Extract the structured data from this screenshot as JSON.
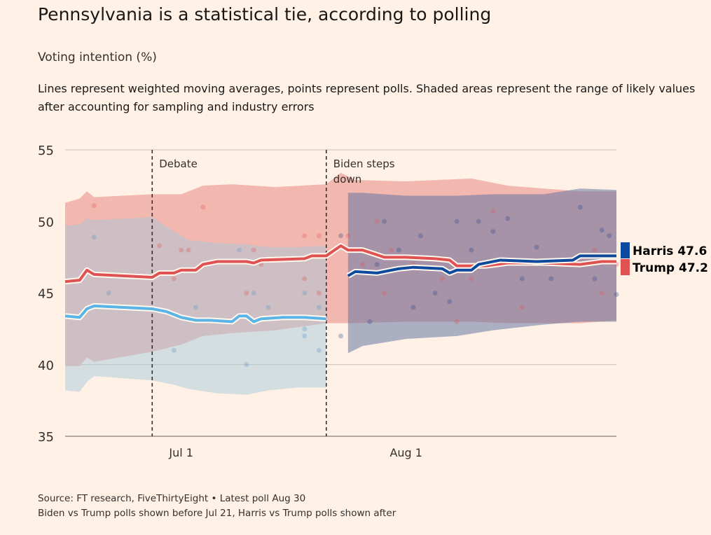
{
  "title": "Pennsylvania is a statistical tie, according to polling",
  "subtitle": "Voting intention (%)",
  "description": "Lines represent weighted moving averages, points represent polls. Shaded areas represent the range of likely values after accounting for sampling and industry errors",
  "footer": {
    "source": "Source: FT research, FiveThirtyEight • Latest poll Aug 30",
    "note": "Biden vs Trump polls shown before Jul 21, Harris vs Trump polls shown after"
  },
  "chart_data": {
    "type": "line",
    "ylim": [
      35,
      55
    ],
    "xlim": [
      "Jun 15",
      "Aug 30"
    ],
    "yticks": [
      35,
      40,
      45,
      50,
      55
    ],
    "xticks": [
      {
        "date": "Jul 1",
        "label": "Jul 1"
      },
      {
        "date": "Aug 1",
        "label": "Aug 1"
      }
    ],
    "grid": true,
    "annotations": [
      {
        "date": "Jun 27",
        "label": "Debate"
      },
      {
        "date": "Jul 21",
        "label": "Biden steps down"
      }
    ],
    "colors": {
      "trump": "#e05252",
      "biden": "#5ab4e5",
      "harris": "#0d4a9e",
      "background": "#fff1e5"
    },
    "legend": [
      {
        "name": "Harris",
        "value": "47.6",
        "color": "#0d4a9e"
      },
      {
        "name": "Trump",
        "value": "47.2",
        "color": "#e05252"
      }
    ],
    "series": [
      {
        "key": "trump",
        "color": "#e05252",
        "points": [
          [
            "Jun 15",
            45.8
          ],
          [
            "Jun 17",
            45.9
          ],
          [
            "Jun 18",
            46.6
          ],
          [
            "Jun 19",
            46.3
          ],
          [
            "Jun 27",
            46.1
          ],
          [
            "Jun 28",
            46.4
          ],
          [
            "Jun 30",
            46.4
          ],
          [
            "Jul 1",
            46.6
          ],
          [
            "Jul 3",
            46.6
          ],
          [
            "Jul 4",
            47.0
          ],
          [
            "Jul 6",
            47.2
          ],
          [
            "Jul 10",
            47.2
          ],
          [
            "Jul 11",
            47.1
          ],
          [
            "Jul 12",
            47.3
          ],
          [
            "Jul 18",
            47.4
          ],
          [
            "Jul 19",
            47.6
          ],
          [
            "Jul 21",
            47.6
          ],
          [
            "Jul 23",
            48.3
          ],
          [
            "Jul 24",
            48.0
          ],
          [
            "Jul 26",
            48.0
          ],
          [
            "Jul 29",
            47.5
          ],
          [
            "Aug 1",
            47.5
          ],
          [
            "Aug 5",
            47.4
          ],
          [
            "Aug 7",
            47.3
          ],
          [
            "Aug 8",
            46.9
          ],
          [
            "Aug 12",
            46.9
          ],
          [
            "Aug 15",
            47.1
          ],
          [
            "Aug 20",
            47.1
          ],
          [
            "Aug 25",
            47.0
          ],
          [
            "Aug 28",
            47.2
          ],
          [
            "Aug 30",
            47.2
          ]
        ],
        "band": [
          [
            "Jun 15",
            39.9,
            51.3
          ],
          [
            "Jun 17",
            39.9,
            51.6
          ],
          [
            "Jun 18",
            40.5,
            52.1
          ],
          [
            "Jun 19",
            40.2,
            51.7
          ],
          [
            "Jun 27",
            40.9,
            51.9
          ],
          [
            "Jul 1",
            41.4,
            51.9
          ],
          [
            "Jul 4",
            42.0,
            52.5
          ],
          [
            "Jul 8",
            42.2,
            52.6
          ],
          [
            "Jul 14",
            42.4,
            52.4
          ],
          [
            "Jul 21",
            42.9,
            52.6
          ],
          [
            "Jul 23",
            42.9,
            53.4
          ],
          [
            "Jul 25",
            42.9,
            52.9
          ],
          [
            "Aug 1",
            43.0,
            52.8
          ],
          [
            "Aug 10",
            43.0,
            53.0
          ],
          [
            "Aug 15",
            42.9,
            52.5
          ],
          [
            "Aug 20",
            42.9,
            52.3
          ],
          [
            "Aug 25",
            42.9,
            52.1
          ],
          [
            "Aug 30",
            43.1,
            52.1
          ]
        ]
      },
      {
        "key": "biden",
        "color": "#5ab4e5",
        "points": [
          [
            "Jun 15",
            43.4
          ],
          [
            "Jun 17",
            43.3
          ],
          [
            "Jun 18",
            43.9
          ],
          [
            "Jun 19",
            44.1
          ],
          [
            "Jun 27",
            43.9
          ],
          [
            "Jun 29",
            43.7
          ],
          [
            "Jul 1",
            43.3
          ],
          [
            "Jul 3",
            43.1
          ],
          [
            "Jul 5",
            43.1
          ],
          [
            "Jul 8",
            43.0
          ],
          [
            "Jul 9",
            43.4
          ],
          [
            "Jul 10",
            43.4
          ],
          [
            "Jul 11",
            43.0
          ],
          [
            "Jul 12",
            43.2
          ],
          [
            "Jul 15",
            43.3
          ],
          [
            "Jul 18",
            43.3
          ],
          [
            "Jul 21",
            43.2
          ]
        ],
        "band": [
          [
            "Jun 15",
            38.2,
            49.7
          ],
          [
            "Jun 17",
            38.1,
            49.8
          ],
          [
            "Jun 18",
            38.8,
            50.2
          ],
          [
            "Jun 19",
            39.2,
            50.1
          ],
          [
            "Jun 27",
            38.9,
            50.3
          ],
          [
            "Jun 30",
            38.6,
            49.3
          ],
          [
            "Jul 2",
            38.3,
            48.7
          ],
          [
            "Jul 6",
            38.0,
            48.5
          ],
          [
            "Jul 10",
            37.9,
            48.4
          ],
          [
            "Jul 13",
            38.2,
            48.2
          ],
          [
            "Jul 17",
            38.4,
            48.2
          ],
          [
            "Jul 21",
            38.4,
            48.3
          ]
        ]
      },
      {
        "key": "harris",
        "color": "#0d4a9e",
        "points": [
          [
            "Jul 24",
            46.2
          ],
          [
            "Jul 25",
            46.5
          ],
          [
            "Jul 28",
            46.4
          ],
          [
            "Jul 29",
            46.5
          ],
          [
            "Jul 31",
            46.7
          ],
          [
            "Aug 2",
            46.8
          ],
          [
            "Aug 6",
            46.7
          ],
          [
            "Aug 7",
            46.4
          ],
          [
            "Aug 8",
            46.6
          ],
          [
            "Aug 10",
            46.6
          ],
          [
            "Aug 11",
            47.0
          ],
          [
            "Aug 14",
            47.3
          ],
          [
            "Aug 19",
            47.2
          ],
          [
            "Aug 24",
            47.3
          ],
          [
            "Aug 25",
            47.6
          ],
          [
            "Aug 28",
            47.6
          ],
          [
            "Aug 30",
            47.6
          ]
        ],
        "band": [
          [
            "Jul 24",
            40.8,
            52.0
          ],
          [
            "Jul 26",
            41.3,
            52.0
          ],
          [
            "Aug 1",
            41.8,
            51.8
          ],
          [
            "Aug 8",
            42.0,
            51.8
          ],
          [
            "Aug 13",
            42.4,
            51.9
          ],
          [
            "Aug 20",
            42.8,
            51.9
          ],
          [
            "Aug 25",
            43.0,
            52.3
          ],
          [
            "Aug 30",
            43.0,
            52.2
          ]
        ]
      }
    ],
    "polls": [
      {
        "key": "trump",
        "date": "Jun 19",
        "value": 51.1
      },
      {
        "key": "trump",
        "date": "Jun 28",
        "value": 48.3
      },
      {
        "key": "trump",
        "date": "Jul 1",
        "value": 48.0
      },
      {
        "key": "trump",
        "date": "Jul 2",
        "value": 48.0
      },
      {
        "key": "trump",
        "date": "Jun 30",
        "value": 46.0
      },
      {
        "key": "trump",
        "date": "Jul 4",
        "value": 51.0
      },
      {
        "key": "trump",
        "date": "Jul 11",
        "value": 48.0
      },
      {
        "key": "trump",
        "date": "Jul 10",
        "value": 45.0
      },
      {
        "key": "trump",
        "date": "Jul 12",
        "value": 47.0
      },
      {
        "key": "trump",
        "date": "Jul 18",
        "value": 49.0
      },
      {
        "key": "trump",
        "date": "Jul 20",
        "value": 49.0
      },
      {
        "key": "trump",
        "date": "Jul 18",
        "value": 46.0
      },
      {
        "key": "trump",
        "date": "Jul 20",
        "value": 45.0
      },
      {
        "key": "biden",
        "date": "Jun 19",
        "value": 48.9
      },
      {
        "key": "biden",
        "date": "Jun 21",
        "value": 45.0
      },
      {
        "key": "biden",
        "date": "Jul 3",
        "value": 44.0
      },
      {
        "key": "biden",
        "date": "Jun 30",
        "value": 41.0
      },
      {
        "key": "biden",
        "date": "Jul 9",
        "value": 48.0
      },
      {
        "key": "biden",
        "date": "Jul 10",
        "value": 40.0
      },
      {
        "key": "biden",
        "date": "Jul 11",
        "value": 45.0
      },
      {
        "key": "biden",
        "date": "Jul 13",
        "value": 44.0
      },
      {
        "key": "biden",
        "date": "Jul 18",
        "value": 45.0
      },
      {
        "key": "biden",
        "date": "Jul 18",
        "value": 42.5
      },
      {
        "key": "biden",
        "date": "Jul 18",
        "value": 42.0
      },
      {
        "key": "biden",
        "date": "Jul 20",
        "value": 41.0
      },
      {
        "key": "biden",
        "date": "Jul 20",
        "value": 44.0
      },
      {
        "key": "trump",
        "date": "Jul 24",
        "value": 49.0
      },
      {
        "key": "trump",
        "date": "Jul 26",
        "value": 47.0
      },
      {
        "key": "trump",
        "date": "Jul 28",
        "value": 50.0
      },
      {
        "key": "trump",
        "date": "Jul 29",
        "value": 45.0
      },
      {
        "key": "trump",
        "date": "Jul 30",
        "value": 48.0
      },
      {
        "key": "trump",
        "date": "Aug 2",
        "value": 47.0
      },
      {
        "key": "trump",
        "date": "Aug 6",
        "value": 46.0
      },
      {
        "key": "trump",
        "date": "Aug 8",
        "value": 43.0
      },
      {
        "key": "trump",
        "date": "Aug 10",
        "value": 46.0
      },
      {
        "key": "trump",
        "date": "Aug 13",
        "value": 50.7
      },
      {
        "key": "trump",
        "date": "Aug 17",
        "value": 44.0
      },
      {
        "key": "trump",
        "date": "Aug 24",
        "value": 47.0
      },
      {
        "key": "trump",
        "date": "Aug 27",
        "value": 48.0
      },
      {
        "key": "trump",
        "date": "Aug 28",
        "value": 45.0
      },
      {
        "key": "trump",
        "date": "Aug 30",
        "value": 47.0
      },
      {
        "key": "harris",
        "date": "Jul 23",
        "value": 42.0
      },
      {
        "key": "harris",
        "date": "Jul 23",
        "value": 49.0
      },
      {
        "key": "harris",
        "date": "Jul 27",
        "value": 43.0
      },
      {
        "key": "harris",
        "date": "Jul 28",
        "value": 47.0
      },
      {
        "key": "harris",
        "date": "Jul 29",
        "value": 50.0
      },
      {
        "key": "harris",
        "date": "Jul 31",
        "value": 48.0
      },
      {
        "key": "harris",
        "date": "Aug 2",
        "value": 44.0
      },
      {
        "key": "harris",
        "date": "Aug 3",
        "value": 49.0
      },
      {
        "key": "harris",
        "date": "Aug 5",
        "value": 45.0
      },
      {
        "key": "harris",
        "date": "Aug 7",
        "value": 44.4
      },
      {
        "key": "harris",
        "date": "Aug 8",
        "value": 50.0
      },
      {
        "key": "harris",
        "date": "Aug 10",
        "value": 48.0
      },
      {
        "key": "harris",
        "date": "Aug 11",
        "value": 50.0
      },
      {
        "key": "harris",
        "date": "Aug 13",
        "value": 49.3
      },
      {
        "key": "harris",
        "date": "Aug 15",
        "value": 50.2
      },
      {
        "key": "harris",
        "date": "Aug 17",
        "value": 46.0
      },
      {
        "key": "harris",
        "date": "Aug 19",
        "value": 48.2
      },
      {
        "key": "harris",
        "date": "Aug 21",
        "value": 46.0
      },
      {
        "key": "harris",
        "date": "Aug 25",
        "value": 51.0
      },
      {
        "key": "harris",
        "date": "Aug 27",
        "value": 46.0
      },
      {
        "key": "harris",
        "date": "Aug 28",
        "value": 49.4
      },
      {
        "key": "harris",
        "date": "Aug 29",
        "value": 49.0
      },
      {
        "key": "harris",
        "date": "Aug 30",
        "value": 44.9
      }
    ]
  }
}
